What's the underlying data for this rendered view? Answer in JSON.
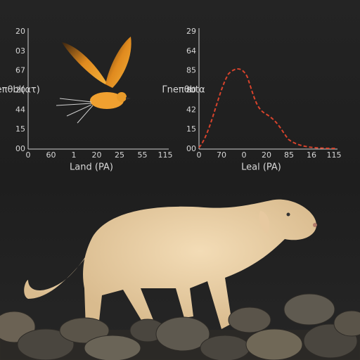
{
  "panels": [
    {
      "y_title": "Γneπθbl(ατ)",
      "x_title": "Land (PA)",
      "y_labels": [
        "20",
        "03",
        "67",
        "20",
        "44",
        "15",
        "00"
      ],
      "x_labels": [
        "0",
        "60",
        "1",
        "20",
        "25",
        "55",
        "115"
      ]
    },
    {
      "y_title": "Γneπθbtα",
      "x_title": "Leal (PA)",
      "y_labels": [
        "29",
        "64",
        "85",
        "80",
        "42",
        "15",
        "00"
      ],
      "x_labels": [
        "0",
        "70",
        "0",
        "20",
        "85",
        "16",
        "115"
      ]
    }
  ]
}
